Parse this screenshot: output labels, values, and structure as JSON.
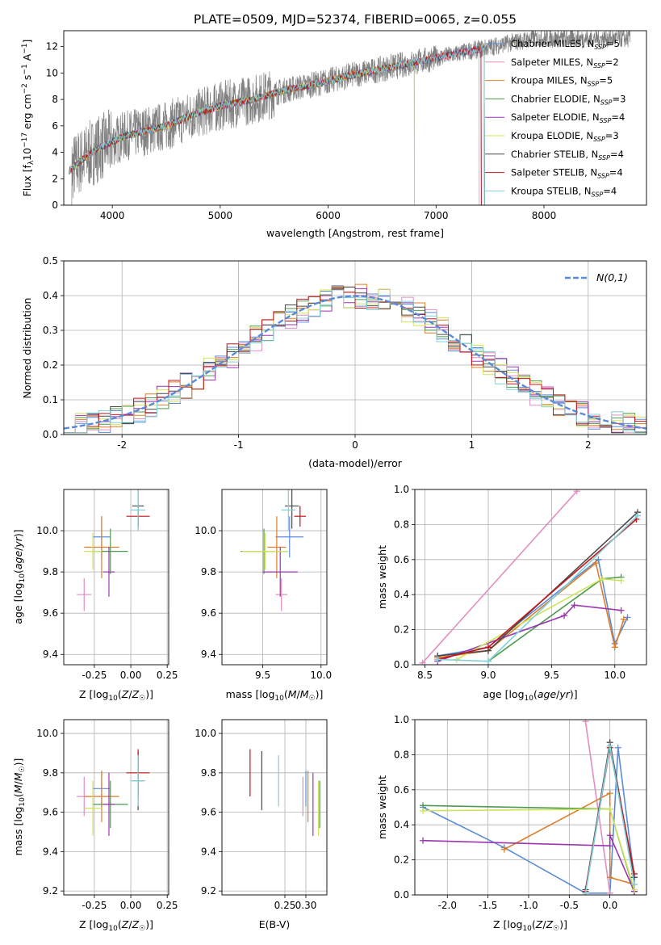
{
  "title": "PLATE=0509, MJD=52374, FIBERID=0065, z=0.055",
  "colors": [
    "#5b8bd8",
    "#e38ec0",
    "#dd7f2a",
    "#4e9a4e",
    "#9b35b0",
    "#cfe35a",
    "#4a4a4a",
    "#c4141a",
    "#7fd0d8"
  ],
  "chart_data": [
    {
      "id": "spectrum",
      "type": "line",
      "xlabel": "wavelength [Angstrom, rest frame]",
      "ylabel": "Flux [f_λ10^-17 erg cm^-2 s^-1 A^-1]",
      "xlim": [
        3550,
        8950
      ],
      "ylim": [
        0,
        13.2
      ],
      "xticks": [
        4000,
        5000,
        6000,
        7000,
        8000
      ],
      "yticks": [
        0,
        2,
        4,
        6,
        8,
        10,
        12
      ],
      "grid": false,
      "legend": "top-right",
      "legend_entries": [
        {
          "model": "Chabrier MILES",
          "n": "5"
        },
        {
          "model": "Salpeter MILES",
          "n": "2"
        },
        {
          "model": "Kroupa MILES",
          "n": "5"
        },
        {
          "model": "Chabrier ELODIE",
          "n": "3"
        },
        {
          "model": "Salpeter ELODIE",
          "n": "4"
        },
        {
          "model": "Kroupa ELODIE",
          "n": "3"
        },
        {
          "model": "Chabrier STELIB",
          "n": "4"
        },
        {
          "model": "Salpeter STELIB",
          "n": "4"
        },
        {
          "model": "Kroupa STELIB",
          "n": "4"
        }
      ],
      "data_continuum": [
        [
          3600,
          2.6
        ],
        [
          3700,
          3.3
        ],
        [
          3850,
          4.2
        ],
        [
          4000,
          4.8
        ],
        [
          4100,
          5.2
        ],
        [
          4300,
          5.6
        ],
        [
          4500,
          6.0
        ],
        [
          4700,
          6.7
        ],
        [
          5000,
          7.5
        ],
        [
          5300,
          8.0
        ],
        [
          5600,
          8.7
        ],
        [
          5900,
          9.2
        ],
        [
          6200,
          9.8
        ],
        [
          6500,
          10.3
        ],
        [
          6800,
          10.8
        ],
        [
          7100,
          11.3
        ],
        [
          7400,
          11.8
        ],
        [
          7700,
          12.3
        ],
        [
          7900,
          12.6
        ]
      ]
    },
    {
      "id": "residuals",
      "type": "line",
      "xlabel": "(data-model)/error",
      "ylabel": "Normed distribution",
      "xlim": [
        -2.5,
        2.5
      ],
      "ylim": [
        0,
        0.5
      ],
      "xticks": [
        -2,
        -1,
        0,
        1,
        2
      ],
      "yticks": [
        0.0,
        0.1,
        0.2,
        0.3,
        0.4,
        0.5
      ],
      "grid": true,
      "legend": "top-right",
      "legend_label": "N(0,1)",
      "curve_sigma": 1
    },
    {
      "id": "age-vs-Z",
      "type": "scatter",
      "xlabel": "Z [log10(Z/Z☉)]",
      "ylabel": "age [log10(age/yr)]",
      "xlim": [
        -0.46,
        0.26
      ],
      "ylim": [
        9.35,
        10.2
      ],
      "xticks": [
        -0.25,
        0.0,
        0.25
      ],
      "yticks": [
        9.4,
        9.6,
        9.8,
        10.0
      ],
      "grid": true
    },
    {
      "id": "age-vs-mass",
      "type": "scatter",
      "xlabel": "mass [log10(M/M☉)]",
      "ylabel": "",
      "xlim": [
        9.15,
        10.05
      ],
      "ylim": [
        9.35,
        10.2
      ],
      "xticks": [
        9.5,
        10.0
      ],
      "yticks": [
        9.4,
        9.6,
        9.8,
        10.0
      ],
      "grid": true
    },
    {
      "id": "weight-vs-age",
      "type": "line",
      "xlabel": "age [log10(age/yr)]",
      "ylabel": "mass weight",
      "xlim": [
        8.42,
        10.25
      ],
      "ylim": [
        0,
        1
      ],
      "xticks": [
        8.5,
        9.0,
        9.5,
        10.0
      ],
      "yticks": [
        0.0,
        0.2,
        0.4,
        0.6,
        0.8,
        1.0
      ],
      "grid": true
    },
    {
      "id": "mass-vs-Z",
      "type": "scatter",
      "xlabel": "Z [log10(Z/Z☉)]",
      "ylabel": "mass [log10(M/M☉)]",
      "xlim": [
        -0.46,
        0.26
      ],
      "ylim": [
        9.18,
        10.07
      ],
      "xticks": [
        -0.25,
        0.0,
        0.25
      ],
      "yticks": [
        9.2,
        9.4,
        9.6,
        9.8,
        10.0
      ],
      "grid": true
    },
    {
      "id": "mass-vs-ebv",
      "type": "scatter",
      "xlabel": "E(B-V)",
      "ylabel": "",
      "xlim": [
        0.1,
        0.35
      ],
      "ylim": [
        9.18,
        10.07
      ],
      "xticks": [
        0.25,
        0.3
      ],
      "yticks": [
        9.2,
        9.4,
        9.6,
        9.8,
        10.0
      ],
      "grid": true
    },
    {
      "id": "weight-vs-Z",
      "type": "line",
      "xlabel": "Z [log10(Z/Z☉)]",
      "ylabel": "mass weight",
      "xlim": [
        -2.4,
        0.45
      ],
      "ylim": [
        0,
        1
      ],
      "xticks": [
        -2.0,
        -1.5,
        -1.0,
        -0.5,
        0.0
      ],
      "yticks": [
        0.0,
        0.2,
        0.4,
        0.6,
        0.8,
        1.0
      ],
      "grid": true
    }
  ],
  "fits": [
    {
      "name": "Chabrier MILES",
      "Z": [
        -0.2,
        0.06
      ],
      "age": [
        9.97,
        0.1
      ],
      "mass": [
        9.73,
        0.12
      ],
      "logM": [
        9.72,
        0.09
      ],
      "ebv": 0.3,
      "wa": [
        [
          8.6,
          0.05
        ],
        [
          9.0,
          0.1
        ],
        [
          9.87,
          0.6
        ],
        [
          10.0,
          0.12
        ],
        [
          10.1,
          0.27
        ]
      ],
      "wz": [
        [
          -2.3,
          0.5
        ],
        [
          -1.3,
          0.27
        ],
        [
          -0.3,
          0.01
        ],
        [
          0.0,
          0.01
        ],
        [
          0.1,
          0.84
        ],
        [
          0.3,
          0.1
        ],
        [
          0.3,
          0.02
        ]
      ]
    },
    {
      "name": "Salpeter MILES",
      "Z": [
        -0.32,
        0.05
      ],
      "age": [
        9.69,
        0.08
      ],
      "mass": [
        9.66,
        0.05
      ],
      "logM": [
        9.68,
        0.1
      ],
      "ebv": 0.293,
      "wa": [
        [
          8.48,
          0.01
        ],
        [
          9.7,
          0.99
        ]
      ],
      "wz": [
        [
          -0.3,
          0.99
        ],
        [
          0.0,
          0.01
        ]
      ]
    },
    {
      "name": "Kroupa MILES",
      "Z": [
        -0.2,
        0.12
      ],
      "age": [
        9.92,
        0.15
      ],
      "mass": [
        9.62,
        0.08
      ],
      "logM": [
        9.68,
        0.13
      ],
      "ebv": 0.305,
      "wa": [
        [
          8.6,
          0.04
        ],
        [
          9.0,
          0.08
        ],
        [
          9.85,
          0.58
        ],
        [
          10.0,
          0.1
        ],
        [
          10.07,
          0.26
        ]
      ],
      "wz": [
        [
          -1.3,
          0.26
        ],
        [
          0.0,
          0.58
        ],
        [
          0.0,
          0.1
        ],
        [
          0.3,
          0.06
        ]
      ]
    },
    {
      "name": "Chabrier ELODIE",
      "Z": [
        -0.14,
        0.12
      ],
      "age": [
        9.9,
        0.11
      ],
      "mass": [
        9.51,
        0.2
      ],
      "logM": [
        9.64,
        0.12
      ],
      "ebv": 0.333,
      "wa": [
        [
          9.0,
          0.02
        ],
        [
          9.9,
          0.49
        ],
        [
          10.05,
          0.5
        ]
      ],
      "wz": [
        [
          -2.3,
          0.51
        ],
        [
          0.0,
          0.49
        ],
        [
          0.3,
          0.02
        ]
      ]
    },
    {
      "name": "Salpeter ELODIE",
      "Z": [
        -0.15,
        0.04
      ],
      "age": [
        9.8,
        0.12
      ],
      "mass": [
        9.65,
        0.15
      ],
      "logM": [
        9.64,
        0.16
      ],
      "ebv": 0.317,
      "wa": [
        [
          8.6,
          0.02
        ],
        [
          9.6,
          0.28
        ],
        [
          9.68,
          0.34
        ],
        [
          10.05,
          0.31
        ]
      ],
      "wz": [
        [
          -2.3,
          0.31
        ],
        [
          0.0,
          0.28
        ],
        [
          0.0,
          0.34
        ],
        [
          0.3,
          0.02
        ]
      ]
    },
    {
      "name": "Kroupa ELODIE",
      "Z": [
        -0.26,
        0.06
      ],
      "age": [
        9.9,
        0.09
      ],
      "mass": [
        9.52,
        0.2
      ],
      "logM": [
        9.62,
        0.14
      ],
      "ebv": 0.33,
      "wa": [
        [
          8.75,
          0.03
        ],
        [
          9.9,
          0.49
        ],
        [
          10.05,
          0.48
        ]
      ],
      "wz": [
        [
          -2.3,
          0.48
        ],
        [
          0.0,
          0.49
        ],
        [
          0.3,
          0.03
        ]
      ]
    },
    {
      "name": "Chabrier STELIB",
      "Z": [
        0.05,
        0.04
      ],
      "age": [
        10.12,
        0.11
      ],
      "mass": [
        9.75,
        0.06
      ],
      "logM": [
        9.76,
        0.15
      ],
      "ebv": 0.195,
      "wa": [
        [
          8.6,
          0.05
        ],
        [
          9.0,
          0.08
        ],
        [
          10.18,
          0.87
        ]
      ],
      "wz": [
        [
          -0.3,
          0.03
        ],
        [
          0.0,
          0.87
        ],
        [
          0.3,
          0.1
        ]
      ]
    },
    {
      "name": "Salpeter STELIB",
      "Z": [
        0.05,
        0.08
      ],
      "age": [
        10.07,
        0.05
      ],
      "mass": [
        9.82,
        0.05
      ],
      "logM": [
        9.8,
        0.12
      ],
      "ebv": 0.167,
      "wa": [
        [
          8.6,
          0.03
        ],
        [
          9.0,
          0.1
        ],
        [
          10.17,
          0.83
        ]
      ],
      "wz": [
        [
          -0.3,
          0.02
        ],
        [
          0.0,
          0.84
        ],
        [
          0.3,
          0.12
        ]
      ]
    },
    {
      "name": "Kroupa STELIB",
      "Z": [
        0.05,
        0.05
      ],
      "age": [
        10.1,
        0.1
      ],
      "mass": [
        9.72,
        0.06
      ],
      "logM": [
        9.76,
        0.13
      ],
      "ebv": 0.235,
      "wa": [
        [
          8.6,
          0.03
        ],
        [
          9.0,
          0.02
        ],
        [
          10.18,
          0.85
        ]
      ],
      "wz": [
        [
          -0.3,
          0.01
        ],
        [
          0.0,
          0.85
        ],
        [
          0.3,
          0.06
        ]
      ]
    }
  ]
}
